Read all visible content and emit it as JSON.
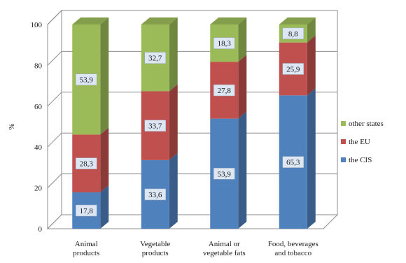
{
  "chart_data": {
    "type": "bar",
    "stacked": true,
    "three_d": true,
    "categories": [
      "Animal products",
      "Vegetable products",
      "Animal or vegetable fats",
      "Food, beverages and tobacco"
    ],
    "category_lines": [
      [
        "Animal",
        "products"
      ],
      [
        "Vegetable",
        "products"
      ],
      [
        "Animal or",
        "vegetable fats"
      ],
      [
        "Food, beverages",
        "and tobacco"
      ]
    ],
    "series": [
      {
        "name": "the CIS",
        "color": "#4f81bd",
        "values": [
          17.8,
          33.6,
          53.9,
          65.3
        ],
        "labels": [
          "17,8",
          "33,6",
          "53,9",
          "65,3"
        ]
      },
      {
        "name": "the EU",
        "color": "#c0504d",
        "values": [
          28.3,
          33.7,
          27.8,
          25.9
        ],
        "labels": [
          "28,3",
          "33,7",
          "27,8",
          "25,9"
        ]
      },
      {
        "name": "other states",
        "color": "#9bbb59",
        "values": [
          53.9,
          32.7,
          18.3,
          8.8
        ],
        "labels": [
          "53,9",
          "32,7",
          "18,3",
          "8,8"
        ]
      }
    ],
    "ylabel": "%",
    "xlabel": "",
    "ylim": [
      0,
      100
    ],
    "yticks": [
      0,
      20,
      40,
      60,
      80,
      100
    ],
    "legend": {
      "position": "right",
      "order": [
        "other states",
        "the EU",
        "the CIS"
      ]
    },
    "grid": true
  }
}
